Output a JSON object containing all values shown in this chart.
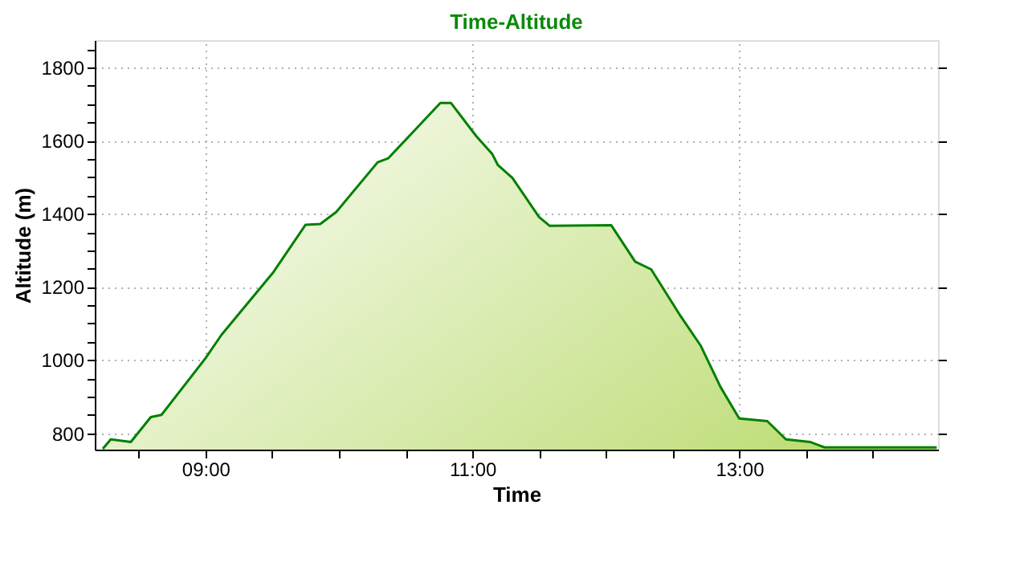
{
  "chart_data": {
    "type": "area",
    "title": "Time-Altitude",
    "xlabel": "Time",
    "ylabel": "Altitude (m)",
    "x": [
      8.23,
      8.29,
      8.44,
      8.59,
      8.67,
      9.0,
      9.12,
      9.51,
      9.75,
      9.86,
      9.98,
      10.29,
      10.37,
      10.6,
      10.76,
      10.84,
      11.03,
      11.15,
      11.19,
      11.3,
      11.5,
      11.58,
      12.04,
      12.22,
      12.34,
      12.55,
      12.71,
      12.86,
      13.0,
      13.21,
      13.35,
      13.53,
      13.64,
      13.96,
      14.48
    ],
    "series": [
      {
        "color": "#008000",
        "values": [
          757,
          783,
          776,
          844,
          850,
          1005,
          1069,
          1241,
          1370,
          1372,
          1405,
          1541,
          1552,
          1641,
          1703,
          1703,
          1612,
          1563,
          1534,
          1498,
          1391,
          1367,
          1369,
          1269,
          1248,
          1126,
          1040,
          926,
          840,
          833,
          783,
          776,
          761,
          761,
          761
        ]
      }
    ],
    "xlim": [
      8.17,
      14.49
    ],
    "xticks": [
      {
        "value": 8.5,
        "label": null
      },
      {
        "value": 9,
        "label": "09:00"
      },
      {
        "value": 9.5,
        "label": null
      },
      {
        "value": 10,
        "label": null
      },
      {
        "value": 10.5,
        "label": null
      },
      {
        "value": 11,
        "label": "11:00"
      },
      {
        "value": 11.5,
        "label": null
      },
      {
        "value": 12,
        "label": null
      },
      {
        "value": 12.5,
        "label": null
      },
      {
        "value": 13,
        "label": "13:00"
      },
      {
        "value": 13.5,
        "label": null
      },
      {
        "value": 14,
        "label": null
      }
    ],
    "ylim": [
      755,
      1875
    ],
    "yticks": [
      {
        "value": 800,
        "label": "800"
      },
      {
        "value": 850,
        "label": null
      },
      {
        "value": 900,
        "label": null
      },
      {
        "value": 950,
        "label": null
      },
      {
        "value": 1000,
        "label": "1000"
      },
      {
        "value": 1050,
        "label": null
      },
      {
        "value": 1100,
        "label": null
      },
      {
        "value": 1150,
        "label": null
      },
      {
        "value": 1200,
        "label": "1200"
      },
      {
        "value": 1250,
        "label": null
      },
      {
        "value": 1300,
        "label": null
      },
      {
        "value": 1350,
        "label": null
      },
      {
        "value": 1400,
        "label": "1400"
      },
      {
        "value": 1450,
        "label": null
      },
      {
        "value": 1500,
        "label": null
      },
      {
        "value": 1550,
        "label": null
      },
      {
        "value": 1600,
        "label": "1600"
      },
      {
        "value": 1650,
        "label": null
      },
      {
        "value": 1700,
        "label": null
      },
      {
        "value": 1750,
        "label": null
      },
      {
        "value": 1800,
        "label": "1800"
      },
      {
        "value": 1850,
        "label": null
      }
    ],
    "grid": true,
    "marker": "none",
    "line_style": "solid"
  }
}
